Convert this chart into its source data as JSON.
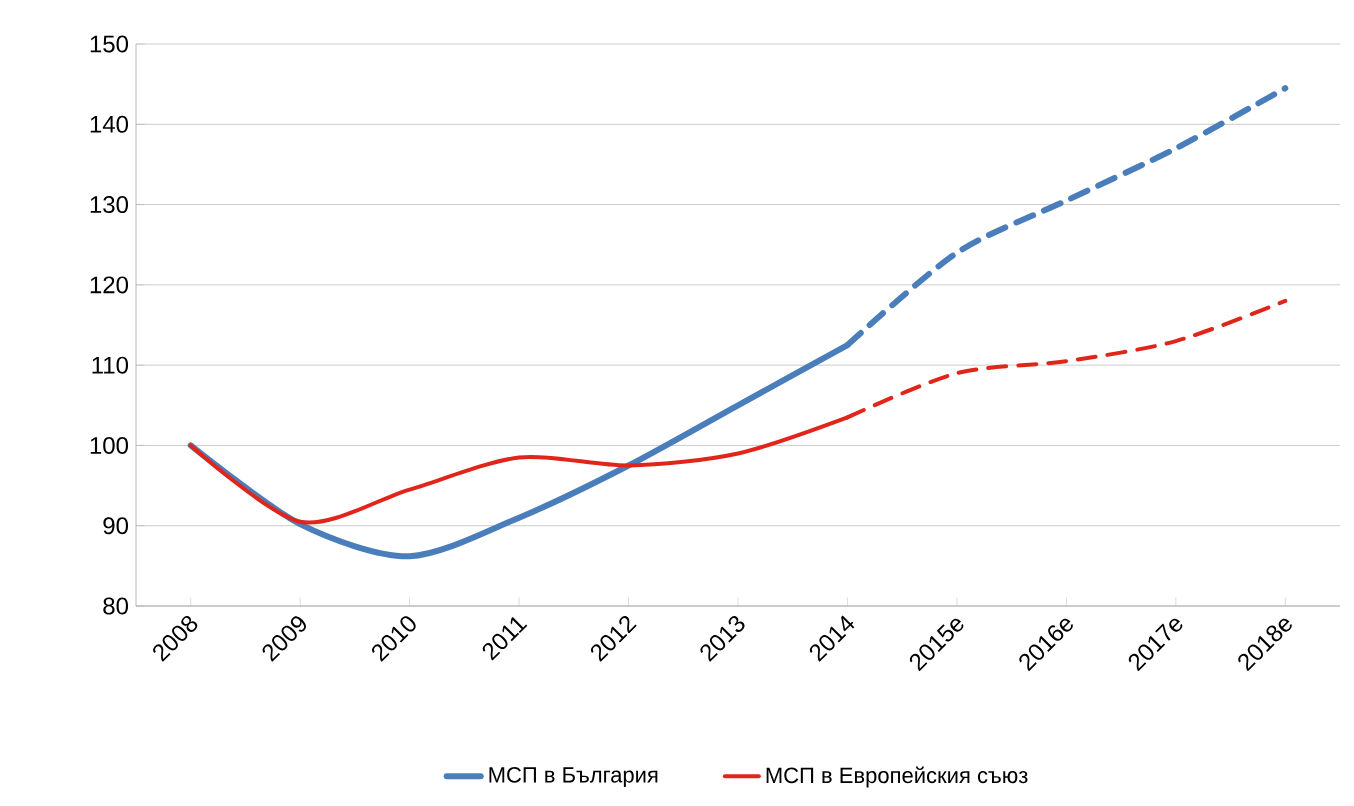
{
  "chart_data": {
    "type": "line",
    "categories": [
      "2008",
      "2009",
      "2010",
      "2011",
      "2012",
      "2013",
      "2014",
      "2015e",
      "2016e",
      "2017e",
      "2018e"
    ],
    "series": [
      {
        "name": "МСП в България",
        "color": "#4a7ebb",
        "line_style": "solid",
        "values": [
          100,
          90.2,
          86.2,
          91,
          97.5,
          105,
          112.5,
          null,
          null,
          null,
          null
        ]
      },
      {
        "color": "#4a7ebb",
        "line_style": "dashed",
        "values": [
          null,
          null,
          null,
          null,
          null,
          null,
          112.5,
          124,
          130.5,
          137,
          144.5
        ]
      },
      {
        "name": "МСП в Европейския съюз",
        "color": "#e0261b",
        "line_style": "solid",
        "values": [
          100,
          90.5,
          94.5,
          98.5,
          97.5,
          99,
          103.5,
          null,
          null,
          null,
          null
        ]
      },
      {
        "color": "#e0261b",
        "line_style": "dashed",
        "values": [
          null,
          null,
          null,
          null,
          null,
          null,
          103.5,
          109,
          110.5,
          113,
          118
        ]
      }
    ],
    "ylim": [
      80,
      150
    ],
    "yticks": [
      80,
      90,
      100,
      110,
      120,
      130,
      140,
      150
    ],
    "grid": "y",
    "legend": "bottom",
    "marker": "none"
  }
}
